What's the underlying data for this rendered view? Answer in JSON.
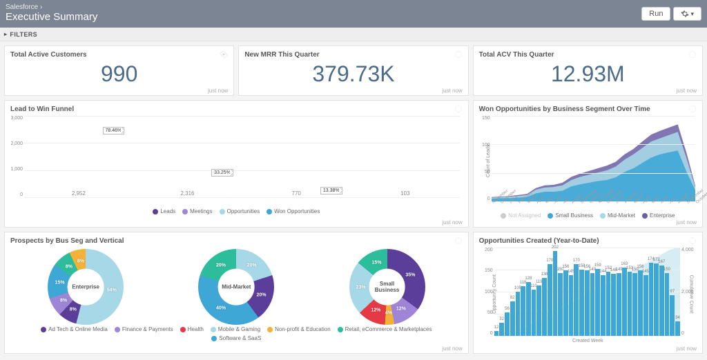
{
  "header": {
    "breadcrumb": "Salesforce ›",
    "title": "Executive Summary",
    "run_label": "Run"
  },
  "filters_label": "FILTERS",
  "timestamps": {
    "just_now": "just now"
  },
  "colors": {
    "kpi_text": "#4a6b8a",
    "grid": "#eeeeee",
    "bar_blue": "#3fa7d6"
  },
  "kpis": [
    {
      "title": "Total Active Customers",
      "value": "990"
    },
    {
      "title": "New MRR This Quarter",
      "value": "379.73K"
    },
    {
      "title": "Total ACV This Quarter",
      "value": "12.93M"
    }
  ],
  "funnel": {
    "title": "Lead to Win Funnel",
    "ymax": 3000,
    "yticks": [
      "3,000",
      "2,000",
      "1,000",
      "0"
    ],
    "bars": [
      {
        "label": "Leads",
        "value": 2952,
        "value_label": "2,952",
        "color": "#5b3e99"
      },
      {
        "label": "Meetings",
        "value": 2316,
        "value_label": "2,316",
        "color": "#9f85d6"
      },
      {
        "label": "Opportunities",
        "value": 770,
        "value_label": "770",
        "color": "#a6d8e7"
      },
      {
        "label": "Won Opportunities",
        "value": 103,
        "value_label": "103",
        "color": "#3fa7d6"
      }
    ],
    "arrows": [
      "78.46%",
      "33.25%",
      "13.38%"
    ]
  },
  "area": {
    "title": "Won Opportunities by Business Segment Over Time",
    "ylabel": "Count of Leads",
    "ymax": 160,
    "yticks": [
      "150",
      "100",
      "50",
      "0"
    ],
    "months": [
      "November",
      "December",
      "2014",
      "February",
      "March",
      "April",
      "May",
      "June",
      "July",
      "August",
      "September",
      "October",
      "November",
      "December",
      "2015",
      "February",
      "March",
      "April",
      "May",
      "June",
      "July",
      "August",
      "September",
      "October"
    ],
    "legend": [
      {
        "label": "Not Assigned",
        "color": "#cccccc"
      },
      {
        "label": "Small Business",
        "color": "#3fa7d6"
      },
      {
        "label": "Mid-Market",
        "color": "#a6d8e7"
      },
      {
        "label": "Enterprise",
        "color": "#6b5ea3"
      }
    ],
    "series_tops": {
      "small": [
        5,
        6,
        6,
        7,
        8,
        15,
        18,
        18,
        20,
        28,
        32,
        35,
        38,
        40,
        45,
        55,
        62,
        72,
        82,
        88,
        92,
        95,
        55,
        20
      ],
      "mid": [
        7,
        8,
        9,
        10,
        12,
        22,
        26,
        27,
        30,
        40,
        46,
        50,
        54,
        58,
        65,
        78,
        88,
        100,
        112,
        118,
        124,
        130,
        80,
        25
      ],
      "ent": [
        8,
        9,
        10,
        12,
        14,
        25,
        30,
        31,
        35,
        46,
        52,
        57,
        62,
        67,
        74,
        88,
        98,
        112,
        125,
        132,
        138,
        144,
        90,
        28
      ]
    }
  },
  "donuts": {
    "title": "Prospects by Bus Seg and Vertical",
    "legend": [
      {
        "label": "Ad Tech & Online Media",
        "color": "#5b3e99"
      },
      {
        "label": "Finance & Payments",
        "color": "#9f85d6"
      },
      {
        "label": "Health",
        "color": "#e63946"
      },
      {
        "label": "Mobile & Gaming",
        "color": "#a6d8e7"
      },
      {
        "label": "Non-profit & Education",
        "color": "#f2b138"
      },
      {
        "label": "Retail, eCommerce & Marketplaces",
        "color": "#2dbd9b"
      },
      {
        "label": "Software & SaaS",
        "color": "#3fa7d6"
      }
    ],
    "charts": [
      {
        "center": "Enterprise",
        "slices": [
          {
            "pct": 54,
            "color": "#a6d8e7",
            "lbl": "54%"
          },
          {
            "pct": 8,
            "color": "#5b3e99",
            "lbl": "8%"
          },
          {
            "pct": 8,
            "color": "#9f85d6",
            "lbl": "8%"
          },
          {
            "pct": 15,
            "color": "#3fa7d6",
            "lbl": "15%"
          },
          {
            "pct": 8,
            "color": "#2dbd9b",
            "lbl": "8%"
          },
          {
            "pct": 8,
            "color": "#f2b138",
            "lbl": "8%"
          }
        ]
      },
      {
        "center": "Mid-Market",
        "slices": [
          {
            "pct": 20,
            "color": "#a6d8e7",
            "lbl": "20%"
          },
          {
            "pct": 20,
            "color": "#5b3e99",
            "lbl": "20%"
          },
          {
            "pct": 40,
            "color": "#3fa7d6",
            "lbl": "40%"
          },
          {
            "pct": 20,
            "color": "#2dbd9b",
            "lbl": "20%"
          }
        ]
      },
      {
        "center": "Small Business",
        "slices": [
          {
            "pct": 35,
            "color": "#5b3e99",
            "lbl": "35%"
          },
          {
            "pct": 12,
            "color": "#9f85d6",
            "lbl": "12%"
          },
          {
            "pct": 4,
            "color": "#f2b138",
            "lbl": "4%"
          },
          {
            "pct": 12,
            "color": "#e63946",
            "lbl": "12%"
          },
          {
            "pct": 23,
            "color": "#a6d8e7",
            "lbl": "23%"
          },
          {
            "pct": 15,
            "color": "#2dbd9b",
            "lbl": "15%"
          }
        ]
      }
    ]
  },
  "opps": {
    "title": "Opportunities Created (Year-to-Date)",
    "ylabel": "Opportunity Count",
    "ylabel_right": "Cumulative Count",
    "xlabel": "Created Week",
    "ymax": 210,
    "yticks": [
      "200",
      "150",
      "100",
      "50",
      "0"
    ],
    "yticks_right": [
      "4,000",
      "2,000",
      "0"
    ],
    "bar_color": "#3fa7d6",
    "area_color": "#a6d8e7",
    "values": [
      12,
      32,
      56,
      82,
      105,
      118,
      128,
      110,
      119,
      138,
      170,
      202,
      150,
      156,
      145,
      170,
      158,
      156,
      149,
      159,
      144,
      152,
      148,
      149,
      163,
      153,
      150,
      156,
      145,
      174,
      172,
      167,
      150,
      97,
      34
    ]
  }
}
